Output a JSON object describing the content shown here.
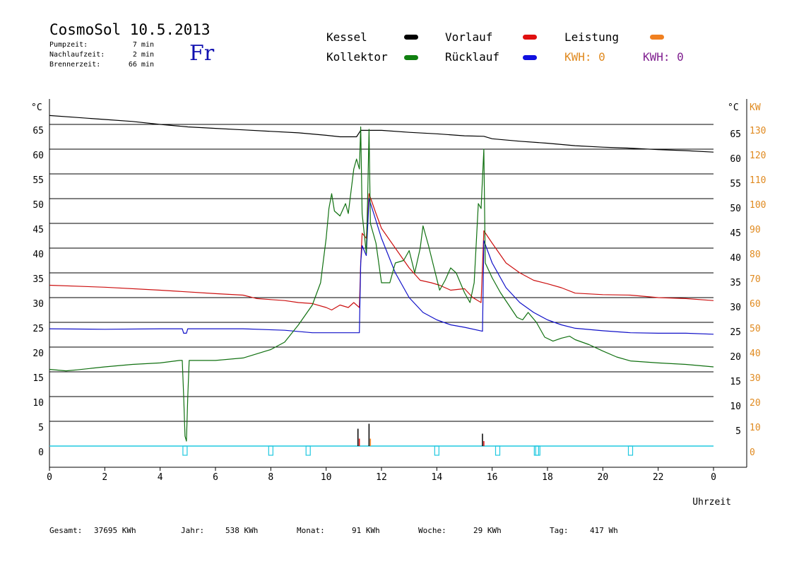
{
  "header": {
    "title": "CosmoSol 10.5.2013",
    "day": "Fr",
    "info": [
      {
        "label": "Pumpzeit:",
        "value": "7 min"
      },
      {
        "label": "Nachlaufzeit:",
        "value": "2 min"
      },
      {
        "label": "Brennerzeit:",
        "value": "66 min"
      }
    ]
  },
  "legend": [
    {
      "label": "Kessel",
      "color": "#000000"
    },
    {
      "label": "Vorlauf",
      "color": "#e01010"
    },
    {
      "label": "Leistung",
      "color": "#f08020"
    },
    {
      "label": "Kollektor",
      "color": "#108010"
    },
    {
      "label": "Rücklauf",
      "color": "#1010e0"
    }
  ],
  "kwh": [
    {
      "text": "KWH: 0",
      "color": "#e08a20"
    },
    {
      "text": "KWH: 0",
      "color": "#802090"
    }
  ],
  "footer": {
    "gesamt": {
      "label": "Gesamt:",
      "value": "37695 KWh"
    },
    "jahr": {
      "label": "Jahr:",
      "value": "538 KWh"
    },
    "monat": {
      "label": "Monat:",
      "value": "91 KWh"
    },
    "woche": {
      "label": "Woche:",
      "value": "29 KWh"
    },
    "tag": {
      "label": "Tag:",
      "value": "417 Wh"
    }
  },
  "chart_data": {
    "type": "line",
    "xlabel": "Uhrzeit",
    "ylabel_left": "°C",
    "ylabel_right": [
      "°C",
      "KW"
    ],
    "xlim": [
      0,
      24
    ],
    "ylim": [
      0,
      70
    ],
    "y2lim": [
      0,
      140
    ],
    "x_ticks": [
      "0",
      "2",
      "4",
      "6",
      "8",
      "10",
      "12",
      "14",
      "16",
      "18",
      "20",
      "22",
      "0"
    ],
    "y_ticks": [
      0,
      5,
      10,
      15,
      20,
      25,
      30,
      35,
      40,
      45,
      50,
      55,
      60,
      65
    ],
    "y_ticks_right": [
      5,
      10,
      15,
      20,
      25,
      30,
      35,
      40,
      45,
      50,
      55,
      60,
      65
    ],
    "y2_ticks": [
      0,
      10,
      20,
      30,
      40,
      50,
      60,
      70,
      80,
      90,
      100,
      110,
      120,
      130
    ],
    "grid": true,
    "series": [
      {
        "name": "Kessel",
        "color": "#000000",
        "points": [
          [
            0,
            66.8
          ],
          [
            1,
            66.4
          ],
          [
            2,
            66.0
          ],
          [
            3,
            65.6
          ],
          [
            4,
            65.0
          ],
          [
            5,
            64.5
          ],
          [
            6,
            64.2
          ],
          [
            7,
            63.9
          ],
          [
            8,
            63.6
          ],
          [
            9,
            63.3
          ],
          [
            10,
            62.8
          ],
          [
            10.5,
            62.5
          ],
          [
            11.1,
            62.5
          ],
          [
            11.25,
            63.8
          ],
          [
            12,
            63.8
          ],
          [
            13,
            63.4
          ],
          [
            14,
            63.1
          ],
          [
            15,
            62.7
          ],
          [
            15.7,
            62.6
          ],
          [
            16,
            62.1
          ],
          [
            17,
            61.6
          ],
          [
            18,
            61.2
          ],
          [
            19,
            60.7
          ],
          [
            20,
            60.4
          ],
          [
            21,
            60.2
          ],
          [
            22,
            59.9
          ],
          [
            23,
            59.7
          ],
          [
            24,
            59.4
          ]
        ]
      },
      {
        "name": "Vorlauf",
        "color": "#cc1010",
        "points": [
          [
            0,
            32.5
          ],
          [
            2,
            32.1
          ],
          [
            4,
            31.5
          ],
          [
            6,
            30.8
          ],
          [
            7,
            30.5
          ],
          [
            7.5,
            29.8
          ],
          [
            8,
            29.6
          ],
          [
            8.5,
            29.4
          ],
          [
            9,
            29.0
          ],
          [
            9.5,
            28.8
          ],
          [
            10,
            28.0
          ],
          [
            10.2,
            27.5
          ],
          [
            10.5,
            28.5
          ],
          [
            10.8,
            28.0
          ],
          [
            11,
            29.0
          ],
          [
            11.1,
            28.5
          ],
          [
            11.2,
            28.0
          ],
          [
            11.25,
            37.0
          ],
          [
            11.3,
            43.0
          ],
          [
            11.45,
            42.0
          ],
          [
            11.55,
            51.0
          ],
          [
            11.8,
            47.0
          ],
          [
            12,
            44.0
          ],
          [
            12.5,
            40.0
          ],
          [
            13,
            36.0
          ],
          [
            13.4,
            33.5
          ],
          [
            13.8,
            33.0
          ],
          [
            14.1,
            32.5
          ],
          [
            14.5,
            31.5
          ],
          [
            15,
            31.8
          ],
          [
            15.3,
            30.0
          ],
          [
            15.6,
            29.0
          ],
          [
            15.7,
            43.5
          ],
          [
            16,
            41.0
          ],
          [
            16.5,
            37.0
          ],
          [
            17,
            35.0
          ],
          [
            17.5,
            33.5
          ],
          [
            18,
            32.8
          ],
          [
            18.5,
            32.0
          ],
          [
            19,
            30.9
          ],
          [
            20,
            30.6
          ],
          [
            21,
            30.5
          ],
          [
            22,
            30.0
          ],
          [
            23,
            29.8
          ],
          [
            24,
            29.4
          ]
        ]
      },
      {
        "name": "Rücklauf",
        "color": "#1010c8",
        "points": [
          [
            0,
            23.7
          ],
          [
            2,
            23.6
          ],
          [
            4,
            23.7
          ],
          [
            4.8,
            23.7
          ],
          [
            4.85,
            22.8
          ],
          [
            4.95,
            22.8
          ],
          [
            5,
            23.7
          ],
          [
            7,
            23.7
          ],
          [
            8.5,
            23.4
          ],
          [
            9.5,
            22.9
          ],
          [
            11.2,
            22.9
          ],
          [
            11.25,
            37.0
          ],
          [
            11.3,
            40.5
          ],
          [
            11.45,
            38.5
          ],
          [
            11.55,
            50.0
          ],
          [
            12,
            42.0
          ],
          [
            12.5,
            35.0
          ],
          [
            13,
            30.0
          ],
          [
            13.5,
            27.0
          ],
          [
            14,
            25.5
          ],
          [
            14.5,
            24.5
          ],
          [
            15,
            24.0
          ],
          [
            15.65,
            23.2
          ],
          [
            15.7,
            41.5
          ],
          [
            16,
            37.0
          ],
          [
            16.5,
            32.0
          ],
          [
            17,
            29.0
          ],
          [
            17.5,
            27.0
          ],
          [
            18,
            25.5
          ],
          [
            18.5,
            24.5
          ],
          [
            19,
            23.8
          ],
          [
            20,
            23.3
          ],
          [
            21,
            22.9
          ],
          [
            22,
            22.8
          ],
          [
            23,
            22.8
          ],
          [
            24,
            22.6
          ]
        ]
      },
      {
        "name": "Kollektor",
        "color": "#107010",
        "points": [
          [
            0,
            15.5
          ],
          [
            0.6,
            15.2
          ],
          [
            1,
            15.4
          ],
          [
            2,
            16.0
          ],
          [
            3,
            16.5
          ],
          [
            4,
            16.8
          ],
          [
            4.7,
            17.3
          ],
          [
            4.8,
            17.3
          ],
          [
            4.85,
            10.0
          ],
          [
            4.9,
            2.0
          ],
          [
            4.95,
            1.0
          ],
          [
            5.0,
            10.0
          ],
          [
            5.05,
            17.3
          ],
          [
            6,
            17.3
          ],
          [
            7,
            17.8
          ],
          [
            8,
            19.5
          ],
          [
            8.5,
            21.0
          ],
          [
            9,
            24.5
          ],
          [
            9.5,
            28.5
          ],
          [
            9.8,
            33.0
          ],
          [
            10,
            42.0
          ],
          [
            10.1,
            48.0
          ],
          [
            10.2,
            51.0
          ],
          [
            10.3,
            47.5
          ],
          [
            10.5,
            46.5
          ],
          [
            10.7,
            49.0
          ],
          [
            10.8,
            47.0
          ],
          [
            11.0,
            56.0
          ],
          [
            11.1,
            58.0
          ],
          [
            11.2,
            56.0
          ],
          [
            11.25,
            64.5
          ],
          [
            11.3,
            47.0
          ],
          [
            11.45,
            39.0
          ],
          [
            11.5,
            50.0
          ],
          [
            11.55,
            64.0
          ],
          [
            11.6,
            45.0
          ],
          [
            11.8,
            41.0
          ],
          [
            12,
            33.0
          ],
          [
            12.3,
            33.0
          ],
          [
            12.5,
            37.0
          ],
          [
            12.8,
            37.5
          ],
          [
            13,
            39.5
          ],
          [
            13.2,
            35.0
          ],
          [
            13.4,
            40.0
          ],
          [
            13.5,
            44.5
          ],
          [
            13.7,
            40.5
          ],
          [
            13.9,
            36.0
          ],
          [
            14.1,
            31.5
          ],
          [
            14.3,
            33.5
          ],
          [
            14.5,
            36.0
          ],
          [
            14.7,
            35.0
          ],
          [
            15.0,
            31.0
          ],
          [
            15.2,
            29.0
          ],
          [
            15.35,
            33.0
          ],
          [
            15.5,
            49.0
          ],
          [
            15.6,
            48.0
          ],
          [
            15.7,
            60.0
          ],
          [
            15.75,
            37.0
          ],
          [
            16,
            34.0
          ],
          [
            16.3,
            31.0
          ],
          [
            16.6,
            28.5
          ],
          [
            16.9,
            26.0
          ],
          [
            17.1,
            25.5
          ],
          [
            17.3,
            27.0
          ],
          [
            17.6,
            25.0
          ],
          [
            17.9,
            22.0
          ],
          [
            18.2,
            21.2
          ],
          [
            18.5,
            21.8
          ],
          [
            18.8,
            22.2
          ],
          [
            19,
            21.5
          ],
          [
            19.5,
            20.5
          ],
          [
            20,
            19.2
          ],
          [
            20.5,
            18.0
          ],
          [
            21,
            17.2
          ],
          [
            22,
            16.8
          ],
          [
            23,
            16.5
          ],
          [
            24,
            16.0
          ]
        ]
      }
    ],
    "bars": [
      {
        "x": 11.15,
        "height": 3.5,
        "color": "#000000"
      },
      {
        "x": 11.2,
        "height": 1.5,
        "color": "#e01010"
      },
      {
        "x": 11.55,
        "height": 4.5,
        "color": "#000000"
      },
      {
        "x": 11.6,
        "height": 1.5,
        "color": "#f08020"
      },
      {
        "x": 15.65,
        "height": 2.5,
        "color": "#000000"
      },
      {
        "x": 15.7,
        "height": 1.0,
        "color": "#e01010"
      }
    ],
    "pump_marks": [
      4.9,
      8.0,
      9.35,
      14.0,
      16.2,
      17.6,
      17.65,
      21.0
    ],
    "pump_color": "#20c8e0"
  }
}
